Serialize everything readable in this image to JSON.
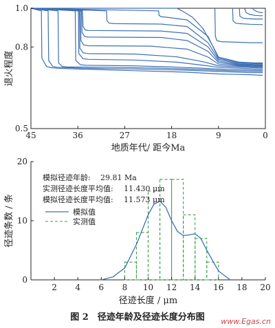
{
  "figure": {
    "caption": "图 2　径迹年龄及径迹长度分布图",
    "watermark": "www.Egas.cn"
  },
  "colors": {
    "curve": "#3d6fb4",
    "measured": "#3aa04a",
    "watermark": "#c44444"
  },
  "chart_data": [
    {
      "type": "line",
      "xlabel": "地质年代/ 距今Ma",
      "ylabel": "退火程度",
      "xlim": [
        45,
        0
      ],
      "ylim": [
        0.5,
        1.0
      ],
      "x_reversed": true,
      "y_scale": "log",
      "x_ticks": [
        45,
        36,
        27,
        18,
        9,
        0
      ],
      "y_ticks": [
        0.5,
        0.8,
        1.0
      ],
      "x_tick_labels": [
        "45",
        "36",
        "27",
        "18",
        "9",
        "0"
      ],
      "y_tick_labels": [
        "0.5",
        "0.8",
        "1.0"
      ],
      "grid": false,
      "series": [
        {
          "x": [
            45,
            43.0,
            42.9,
            42.0,
            41.0,
            40.0,
            35.0,
            25.0,
            15.0,
            9.0,
            5.0,
            3.0,
            1.0,
            0.5
          ],
          "y": [
            1.0,
            0.985,
            0.75,
            0.715,
            0.71,
            0.708,
            0.704,
            0.698,
            0.692,
            0.685,
            0.683,
            0.682,
            0.68,
            0.68
          ]
        },
        {
          "x": [
            45,
            41.7,
            41.6,
            40.8,
            40.0,
            35.0,
            25.0,
            15.0,
            9.0,
            5.0,
            3.0,
            1.0,
            0.5
          ],
          "y": [
            1.0,
            0.985,
            0.74,
            0.715,
            0.712,
            0.708,
            0.705,
            0.7,
            0.695,
            0.692,
            0.69,
            0.69,
            0.69
          ]
        },
        {
          "x": [
            45,
            39.8,
            39.7,
            39.0,
            38.0,
            30.0,
            20.0,
            12.0,
            9.0,
            5.0,
            2.0,
            0.5
          ],
          "y": [
            1.0,
            0.985,
            0.73,
            0.715,
            0.713,
            0.712,
            0.708,
            0.703,
            0.7,
            0.697,
            0.695,
            0.695
          ]
        },
        {
          "x": [
            45,
            36.5,
            36.4,
            35.5,
            34.5,
            26.0,
            18.0,
            12.0,
            9.0,
            5.0,
            2.0,
            0.5
          ],
          "y": [
            1.0,
            0.985,
            0.74,
            0.722,
            0.72,
            0.718,
            0.713,
            0.708,
            0.705,
            0.702,
            0.7,
            0.7
          ]
        },
        {
          "x": [
            45,
            35.9,
            35.8,
            35.0,
            34.0,
            25.0,
            17.0,
            12.0,
            9.0,
            5.0,
            2.0,
            0.5
          ],
          "y": [
            1.0,
            0.985,
            0.77,
            0.748,
            0.745,
            0.742,
            0.733,
            0.72,
            0.712,
            0.708,
            0.705,
            0.705
          ]
        },
        {
          "x": [
            45,
            35.7,
            35.6,
            35.0,
            34.0,
            25.0,
            17.0,
            12.0,
            9.0,
            5.0,
            2.0,
            0.5
          ],
          "y": [
            1.0,
            0.985,
            0.795,
            0.774,
            0.77,
            0.768,
            0.756,
            0.735,
            0.718,
            0.713,
            0.71,
            0.71
          ]
        },
        {
          "x": [
            45,
            35.5,
            35.4,
            34.9,
            34.0,
            22.0,
            15.0,
            11.0,
            9.0,
            5.0,
            2.0,
            0.5
          ],
          "y": [
            1.0,
            0.985,
            0.83,
            0.81,
            0.806,
            0.804,
            0.79,
            0.755,
            0.725,
            0.717,
            0.714,
            0.714
          ]
        },
        {
          "x": [
            45,
            35.3,
            35.2,
            34.7,
            34.0,
            20.0,
            15.0,
            11.0,
            9.0,
            5.0,
            2.0,
            0.5
          ],
          "y": [
            1.0,
            0.985,
            0.87,
            0.85,
            0.847,
            0.845,
            0.83,
            0.78,
            0.732,
            0.72,
            0.717,
            0.717
          ]
        },
        {
          "x": [
            45,
            35.1,
            35.0,
            34.6,
            34.0,
            20.0,
            15.0,
            11.0,
            9.0,
            5.0,
            2.0,
            0.5
          ],
          "y": [
            1.0,
            0.985,
            0.9,
            0.883,
            0.88,
            0.877,
            0.865,
            0.8,
            0.738,
            0.723,
            0.72,
            0.72
          ]
        },
        {
          "x": [
            45,
            30.5,
            30.4,
            30.0,
            29.0,
            20.0,
            15.0,
            11.0,
            9.0,
            5.0,
            2.0,
            0.5
          ],
          "y": [
            1.0,
            0.985,
            0.93,
            0.918,
            0.915,
            0.913,
            0.9,
            0.82,
            0.745,
            0.726,
            0.723,
            0.723
          ]
        },
        {
          "x": [
            45,
            20.5,
            20.4,
            20.0,
            19.0,
            15.0,
            11.0,
            9.0,
            5.0,
            2.0,
            0.5
          ],
          "y": [
            1.0,
            0.985,
            0.96,
            0.952,
            0.95,
            0.935,
            0.85,
            0.75,
            0.73,
            0.727,
            0.727
          ]
        },
        {
          "x": [
            45,
            17.0,
            16.0,
            14.0,
            12.0,
            10.0,
            9.0,
            5.0,
            2.0,
            0.5
          ],
          "y": [
            1.0,
            1.0,
            0.985,
            0.95,
            0.89,
            0.8,
            0.755,
            0.733,
            0.73,
            0.73
          ]
        },
        {
          "x": [
            9.7,
            9.6,
            9.3,
            8.5,
            5.0,
            3.0,
            0.5
          ],
          "y": [
            1.0,
            0.85,
            0.83,
            0.825,
            0.822,
            0.82,
            0.82
          ]
        },
        {
          "x": [
            6.3,
            6.2,
            5.7,
            5.0,
            3.0,
            0.5
          ],
          "y": [
            1.0,
            0.93,
            0.918,
            0.915,
            0.912,
            0.91
          ]
        },
        {
          "x": [
            5.0,
            4.9,
            4.3,
            3.5,
            2.0,
            0.5
          ],
          "y": [
            1.0,
            0.955,
            0.945,
            0.942,
            0.94,
            0.94
          ]
        },
        {
          "x": [
            4.0,
            3.7,
            3.0,
            2.0,
            1.0,
            0.5
          ],
          "y": [
            1.0,
            0.975,
            0.965,
            0.96,
            0.958,
            0.958
          ]
        },
        {
          "x": [
            2.5,
            2.1,
            1.5,
            0.9,
            0.5
          ],
          "y": [
            1.0,
            0.988,
            0.98,
            0.975,
            0.975
          ]
        }
      ]
    },
    {
      "type": "bar",
      "xlabel": "径迹长度 / μm",
      "ylabel": "径迹条数 / 条",
      "xlim": [
        0,
        20
      ],
      "ylim": [
        0,
        20
      ],
      "x_ticks": [
        2,
        4,
        6,
        8,
        10,
        12,
        14,
        16,
        18,
        20
      ],
      "y_ticks": [
        0,
        10,
        20
      ],
      "x_tick_labels": [
        "2",
        "4",
        "6",
        "8",
        "10",
        "12",
        "14",
        "16",
        "18",
        "20"
      ],
      "y_tick_labels": [
        "0",
        "10",
        "20"
      ],
      "grid": false,
      "annotations": [
        {
          "label": "模拟径迹年龄:",
          "value": "29.81 Ma"
        },
        {
          "label": "实测径迹长度平均值:",
          "value": "11.430 μm"
        },
        {
          "label": "模拟径迹长度平均值:",
          "value": "11.573 μm"
        }
      ],
      "legend": {
        "placement": "left",
        "entries": [
          {
            "name": "模拟值",
            "style": "solid"
          },
          {
            "name": "实测值",
            "style": "dashed"
          }
        ]
      },
      "series": [
        {
          "name": "模拟值",
          "type": "line",
          "x": [
            6.0,
            7.0,
            8.0,
            9.0,
            10.0,
            10.5,
            11.0,
            11.5,
            12.0,
            12.5,
            13.0,
            13.5,
            14.0,
            14.5,
            15.0,
            16.0,
            17.0
          ],
          "y": [
            0,
            0.5,
            2.0,
            6.0,
            11.0,
            12.8,
            13.3,
            12.3,
            10.0,
            8.2,
            7.5,
            7.6,
            7.8,
            7.0,
            5.0,
            1.5,
            0
          ]
        },
        {
          "name": "实测值",
          "type": "bar",
          "bin_edges": [
            8,
            9,
            10,
            11,
            12,
            13,
            14,
            15,
            16
          ],
          "counts": [
            3,
            8,
            15,
            17,
            17,
            11,
            7,
            3
          ]
        }
      ]
    }
  ]
}
